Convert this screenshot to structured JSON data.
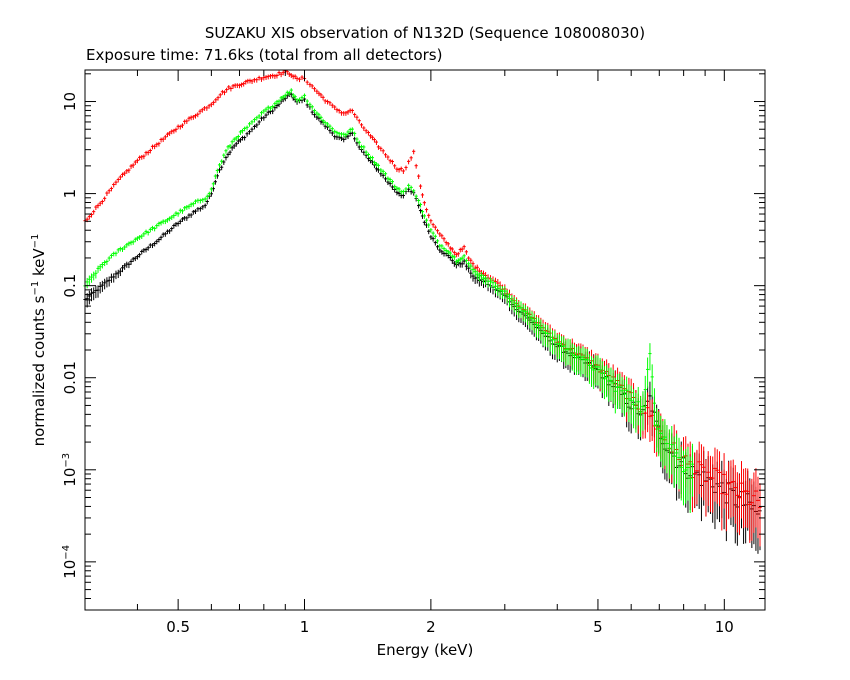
{
  "chart_data": {
    "type": "scatter",
    "title": "SUZAKU XIS observation of N132D (Sequence 108008030)",
    "subtitle": "Exposure time: 71.6ks (total from all detectors)",
    "xlabel": "Energy (keV)",
    "ylabel": {
      "text": "normalized counts s",
      "sup1": "−1",
      "mid": " keV",
      "sup2": "−1"
    },
    "x_scale": "log",
    "y_scale": "log",
    "xlim": [
      0.3,
      12.5
    ],
    "ylim": [
      3e-05,
      22
    ],
    "grid": false,
    "x_ticks": [
      {
        "value": 0.5,
        "label": "0.5"
      },
      {
        "value": 1,
        "label": "1"
      },
      {
        "value": 2,
        "label": "2"
      },
      {
        "value": 5,
        "label": "5"
      },
      {
        "value": 10,
        "label": "10"
      }
    ],
    "y_ticks": [
      {
        "value": 10,
        "base": "10",
        "exp": ""
      },
      {
        "value": 1,
        "base": "1",
        "exp": ""
      },
      {
        "value": 0.1,
        "base": "0.1",
        "exp": ""
      },
      {
        "value": 0.01,
        "base": "0.01",
        "exp": ""
      },
      {
        "value": 0.001,
        "base": "10",
        "exp": "−3"
      },
      {
        "value": 0.0001,
        "base": "10",
        "exp": "−4"
      }
    ],
    "series": [
      {
        "color": "#000000",
        "x": [
          0.3,
          0.33,
          0.36,
          0.4,
          0.45,
          0.5,
          0.55,
          0.58,
          0.6,
          0.62,
          0.65,
          0.68,
          0.72,
          0.76,
          0.8,
          0.85,
          0.9,
          0.93,
          0.96,
          1.0,
          1.03,
          1.07,
          1.12,
          1.18,
          1.24,
          1.3,
          1.35,
          1.42,
          1.5,
          1.58,
          1.66,
          1.72,
          1.77,
          1.82,
          1.87,
          1.93,
          2.0,
          2.1,
          2.2,
          2.3,
          2.4,
          2.46,
          2.55,
          2.7,
          2.85,
          3.0,
          3.2,
          3.4,
          3.7,
          4.0,
          4.5,
          5.0,
          5.5,
          6.0,
          6.4,
          6.65,
          6.9,
          7.3,
          7.8,
          8.5,
          9.5,
          10.5,
          11.5,
          12.3
        ],
        "y": [
          0.07,
          0.1,
          0.14,
          0.21,
          0.32,
          0.48,
          0.65,
          0.75,
          1.0,
          1.6,
          2.5,
          3.3,
          4.2,
          5.3,
          6.8,
          8.5,
          11,
          12,
          9.8,
          10.5,
          8.5,
          6.8,
          5.5,
          4.3,
          3.8,
          4.6,
          3.2,
          2.4,
          1.8,
          1.35,
          1.05,
          0.95,
          1.1,
          1.0,
          0.75,
          0.5,
          0.35,
          0.25,
          0.21,
          0.17,
          0.18,
          0.15,
          0.12,
          0.11,
          0.09,
          0.08,
          0.055,
          0.045,
          0.03,
          0.022,
          0.016,
          0.012,
          0.008,
          0.005,
          0.004,
          0.006,
          0.003,
          0.0018,
          0.0012,
          0.0009,
          0.0007,
          0.0005,
          0.0004,
          0.0003
        ]
      },
      {
        "color": "#ff0000",
        "x": [
          0.3,
          0.33,
          0.36,
          0.4,
          0.45,
          0.5,
          0.55,
          0.6,
          0.63,
          0.66,
          0.7,
          0.75,
          0.8,
          0.85,
          0.9,
          0.93,
          0.96,
          1.0,
          1.03,
          1.07,
          1.12,
          1.18,
          1.24,
          1.3,
          1.35,
          1.42,
          1.5,
          1.58,
          1.66,
          1.72,
          1.77,
          1.82,
          1.87,
          1.93,
          2.0,
          2.1,
          2.2,
          2.3,
          2.4,
          2.46,
          2.55,
          2.7,
          2.85,
          3.0,
          3.2,
          3.4,
          3.7,
          4.0,
          4.5,
          5.0,
          5.5,
          6.0,
          6.4,
          6.65,
          6.9,
          7.3,
          7.8,
          8.5,
          9.5,
          10.5,
          11.5,
          12.3
        ],
        "y": [
          0.5,
          0.85,
          1.4,
          2.3,
          3.6,
          5.3,
          7.2,
          9.5,
          12,
          14,
          15.5,
          17,
          18.5,
          19.5,
          21,
          20,
          17.5,
          18,
          15.5,
          13,
          10.5,
          8.5,
          7.5,
          8.0,
          6.0,
          4.5,
          3.3,
          2.5,
          1.9,
          1.8,
          2.2,
          2.8,
          1.5,
          0.8,
          0.5,
          0.36,
          0.28,
          0.22,
          0.26,
          0.2,
          0.16,
          0.13,
          0.11,
          0.09,
          0.065,
          0.05,
          0.035,
          0.025,
          0.018,
          0.013,
          0.009,
          0.006,
          0.0045,
          0.004,
          0.003,
          0.002,
          0.0014,
          0.001,
          0.0008,
          0.0006,
          0.0005,
          0.0004
        ]
      },
      {
        "color": "#00ff00",
        "x": [
          0.3,
          0.33,
          0.36,
          0.4,
          0.45,
          0.5,
          0.55,
          0.58,
          0.6,
          0.62,
          0.65,
          0.68,
          0.72,
          0.76,
          0.8,
          0.85,
          0.9,
          0.93,
          0.96,
          1.0,
          1.03,
          1.07,
          1.12,
          1.18,
          1.24,
          1.3,
          1.35,
          1.42,
          1.5,
          1.58,
          1.66,
          1.72,
          1.77,
          1.82,
          1.87,
          1.93,
          2.0,
          2.1,
          2.2,
          2.3,
          2.4,
          2.46,
          2.55,
          2.7,
          2.85,
          3.0,
          3.2,
          3.4,
          3.7,
          4.0,
          4.5,
          5.0,
          5.5,
          6.0,
          6.4,
          6.65,
          6.9,
          7.3,
          7.8,
          8.5
        ],
        "y": [
          0.1,
          0.17,
          0.24,
          0.33,
          0.46,
          0.62,
          0.8,
          0.9,
          1.1,
          1.8,
          2.9,
          3.9,
          5.0,
          6.2,
          7.8,
          9.5,
          12,
          13,
          10.5,
          11.5,
          9.5,
          7.5,
          6.0,
          4.8,
          4.3,
          5.0,
          3.6,
          2.7,
          2.0,
          1.5,
          1.15,
          1.05,
          1.2,
          1.1,
          0.85,
          0.57,
          0.4,
          0.28,
          0.24,
          0.19,
          0.21,
          0.17,
          0.14,
          0.12,
          0.1,
          0.085,
          0.06,
          0.05,
          0.032,
          0.024,
          0.017,
          0.012,
          0.008,
          0.006,
          0.0045,
          0.018,
          0.0035,
          0.002,
          0.0013,
          0.0009
        ]
      }
    ]
  }
}
